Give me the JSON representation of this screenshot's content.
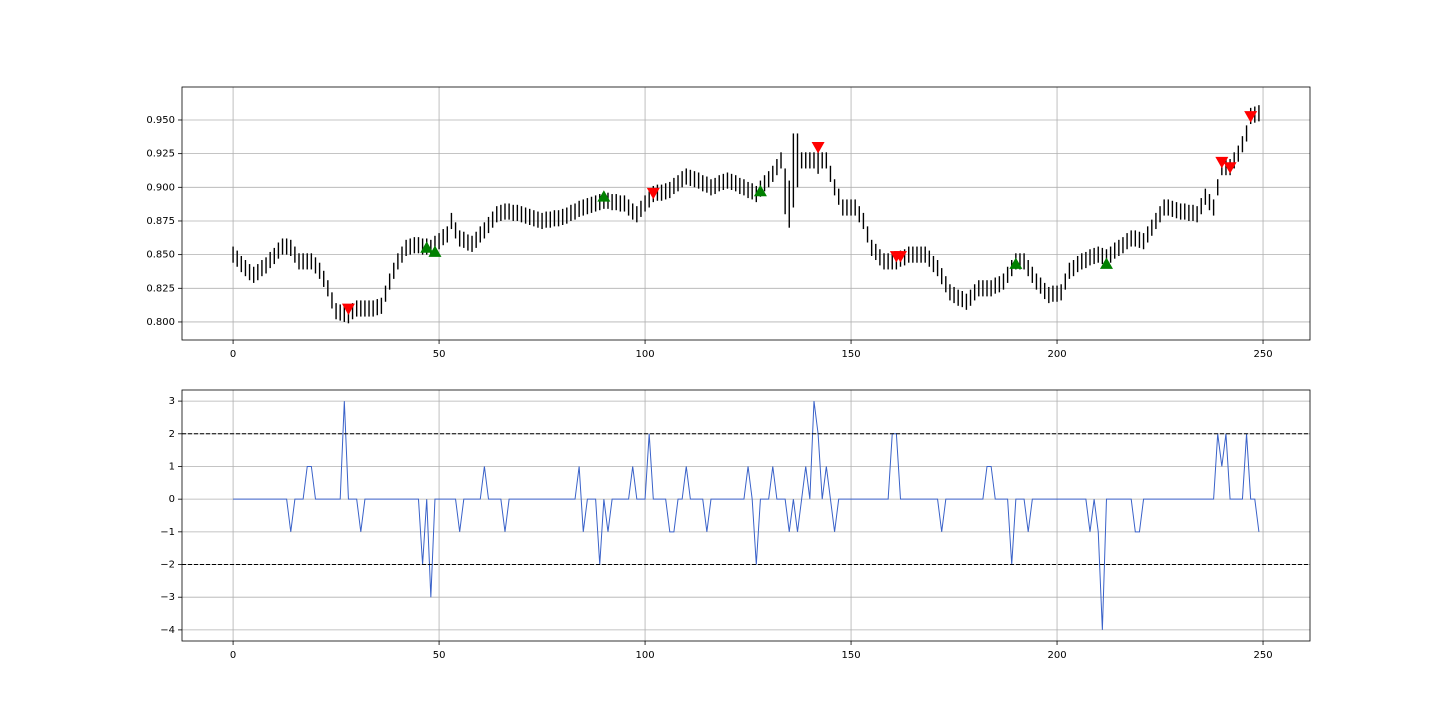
{
  "chart_data": [
    {
      "type": "range_bar",
      "color": "#000000",
      "grid": true,
      "xlim": [
        -12.4,
        261.4
      ],
      "xticks": [
        0,
        50,
        100,
        150,
        200,
        250
      ],
      "ylim": [
        0.7866,
        0.9745
      ],
      "yticks": [
        {
          "value": 0.8,
          "label": "0.800"
        },
        {
          "value": 0.825,
          "label": "0.825"
        },
        {
          "value": 0.85,
          "label": "0.850"
        },
        {
          "value": 0.875,
          "label": "0.875"
        },
        {
          "value": 0.9,
          "label": "0.900"
        },
        {
          "value": 0.925,
          "label": "0.925"
        },
        {
          "value": 0.95,
          "label": "0.950"
        }
      ],
      "high": [
        0.856,
        0.853,
        0.849,
        0.846,
        0.843,
        0.841,
        0.843,
        0.846,
        0.848,
        0.852,
        0.855,
        0.859,
        0.862,
        0.862,
        0.861,
        0.856,
        0.851,
        0.851,
        0.851,
        0.851,
        0.848,
        0.844,
        0.838,
        0.831,
        0.822,
        0.814,
        0.813,
        0.812,
        0.811,
        0.814,
        0.816,
        0.816,
        0.816,
        0.816,
        0.816,
        0.817,
        0.818,
        0.827,
        0.836,
        0.844,
        0.851,
        0.856,
        0.861,
        0.862,
        0.863,
        0.863,
        0.862,
        0.862,
        0.861,
        0.864,
        0.866,
        0.869,
        0.871,
        0.881,
        0.874,
        0.868,
        0.867,
        0.865,
        0.864,
        0.867,
        0.871,
        0.874,
        0.878,
        0.882,
        0.886,
        0.887,
        0.888,
        0.888,
        0.887,
        0.887,
        0.886,
        0.885,
        0.884,
        0.883,
        0.882,
        0.881,
        0.882,
        0.882,
        0.883,
        0.883,
        0.884,
        0.885,
        0.887,
        0.888,
        0.89,
        0.891,
        0.892,
        0.893,
        0.894,
        0.895,
        0.896,
        0.896,
        0.895,
        0.895,
        0.894,
        0.894,
        0.891,
        0.888,
        0.886,
        0.89,
        0.894,
        0.897,
        0.901,
        0.902,
        0.902,
        0.903,
        0.904,
        0.907,
        0.909,
        0.912,
        0.914,
        0.913,
        0.912,
        0.911,
        0.909,
        0.908,
        0.906,
        0.907,
        0.909,
        0.91,
        0.911,
        0.91,
        0.909,
        0.907,
        0.906,
        0.904,
        0.903,
        0.901,
        0.905,
        0.909,
        0.912,
        0.916,
        0.921,
        0.926,
        0.914,
        0.905,
        0.94,
        0.94,
        0.926,
        0.926,
        0.926,
        0.926,
        0.93,
        0.926,
        0.926,
        0.916,
        0.906,
        0.899,
        0.891,
        0.891,
        0.891,
        0.891,
        0.886,
        0.881,
        0.871,
        0.861,
        0.858,
        0.854,
        0.851,
        0.851,
        0.851,
        0.851,
        0.853,
        0.854,
        0.856,
        0.856,
        0.856,
        0.856,
        0.856,
        0.853,
        0.849,
        0.846,
        0.84,
        0.834,
        0.828,
        0.826,
        0.824,
        0.823,
        0.821,
        0.824,
        0.828,
        0.831,
        0.831,
        0.831,
        0.831,
        0.833,
        0.834,
        0.836,
        0.841,
        0.846,
        0.851,
        0.851,
        0.851,
        0.846,
        0.841,
        0.836,
        0.833,
        0.829,
        0.826,
        0.827,
        0.827,
        0.828,
        0.836,
        0.844,
        0.846,
        0.849,
        0.851,
        0.852,
        0.854,
        0.855,
        0.856,
        0.855,
        0.854,
        0.856,
        0.859,
        0.861,
        0.863,
        0.866,
        0.868,
        0.868,
        0.867,
        0.866,
        0.871,
        0.876,
        0.881,
        0.886,
        0.891,
        0.891,
        0.89,
        0.889,
        0.888,
        0.888,
        0.887,
        0.887,
        0.886,
        0.892,
        0.899,
        0.895,
        0.891,
        0.906,
        0.921,
        0.921,
        0.921,
        0.926,
        0.931,
        0.938,
        0.946,
        0.959,
        0.96,
        0.961
      ],
      "low": [
        0.844,
        0.841,
        0.837,
        0.834,
        0.831,
        0.829,
        0.831,
        0.834,
        0.836,
        0.84,
        0.843,
        0.847,
        0.85,
        0.85,
        0.849,
        0.844,
        0.839,
        0.839,
        0.839,
        0.839,
        0.836,
        0.832,
        0.826,
        0.819,
        0.81,
        0.802,
        0.801,
        0.8,
        0.799,
        0.802,
        0.804,
        0.804,
        0.804,
        0.804,
        0.804,
        0.805,
        0.806,
        0.815,
        0.824,
        0.832,
        0.839,
        0.844,
        0.849,
        0.85,
        0.851,
        0.851,
        0.85,
        0.85,
        0.849,
        0.852,
        0.854,
        0.857,
        0.859,
        0.869,
        0.862,
        0.856,
        0.855,
        0.853,
        0.852,
        0.855,
        0.859,
        0.862,
        0.866,
        0.87,
        0.874,
        0.875,
        0.876,
        0.876,
        0.875,
        0.875,
        0.874,
        0.873,
        0.872,
        0.871,
        0.87,
        0.869,
        0.87,
        0.87,
        0.871,
        0.871,
        0.872,
        0.873,
        0.875,
        0.876,
        0.878,
        0.879,
        0.88,
        0.881,
        0.882,
        0.883,
        0.884,
        0.884,
        0.883,
        0.883,
        0.882,
        0.882,
        0.879,
        0.876,
        0.874,
        0.878,
        0.882,
        0.885,
        0.889,
        0.89,
        0.89,
        0.891,
        0.892,
        0.895,
        0.897,
        0.9,
        0.902,
        0.901,
        0.9,
        0.899,
        0.897,
        0.896,
        0.894,
        0.895,
        0.897,
        0.898,
        0.899,
        0.898,
        0.897,
        0.895,
        0.894,
        0.892,
        0.891,
        0.889,
        0.893,
        0.897,
        0.9,
        0.904,
        0.909,
        0.914,
        0.88,
        0.87,
        0.885,
        0.9,
        0.914,
        0.914,
        0.914,
        0.914,
        0.91,
        0.914,
        0.914,
        0.904,
        0.894,
        0.887,
        0.879,
        0.879,
        0.879,
        0.879,
        0.874,
        0.869,
        0.859,
        0.849,
        0.846,
        0.842,
        0.839,
        0.839,
        0.839,
        0.839,
        0.841,
        0.842,
        0.844,
        0.844,
        0.844,
        0.844,
        0.844,
        0.841,
        0.837,
        0.834,
        0.828,
        0.822,
        0.816,
        0.814,
        0.812,
        0.811,
        0.809,
        0.812,
        0.816,
        0.819,
        0.819,
        0.819,
        0.819,
        0.821,
        0.822,
        0.824,
        0.829,
        0.834,
        0.839,
        0.839,
        0.839,
        0.834,
        0.829,
        0.824,
        0.821,
        0.817,
        0.814,
        0.815,
        0.815,
        0.816,
        0.824,
        0.832,
        0.834,
        0.837,
        0.839,
        0.84,
        0.842,
        0.843,
        0.844,
        0.843,
        0.842,
        0.844,
        0.847,
        0.849,
        0.851,
        0.854,
        0.856,
        0.856,
        0.855,
        0.854,
        0.859,
        0.864,
        0.869,
        0.874,
        0.879,
        0.879,
        0.878,
        0.877,
        0.876,
        0.876,
        0.875,
        0.875,
        0.874,
        0.88,
        0.887,
        0.883,
        0.879,
        0.894,
        0.909,
        0.909,
        0.909,
        0.914,
        0.919,
        0.926,
        0.934,
        0.947,
        0.948,
        0.949
      ],
      "markers": [
        {
          "marker": "up",
          "color": "#008000",
          "x": [
            47,
            49,
            90,
            128,
            190,
            212
          ],
          "values": [
            0.855,
            0.852,
            0.893,
            0.897,
            0.843,
            0.843
          ]
        },
        {
          "marker": "down",
          "color": "#ff0000",
          "x": [
            28,
            102,
            142,
            161,
            162,
            240,
            242,
            247
          ],
          "values": [
            0.81,
            0.896,
            0.93,
            0.849,
            0.849,
            0.919,
            0.915,
            0.953
          ]
        }
      ]
    },
    {
      "type": "line",
      "color": "#3a62c9",
      "grid": true,
      "xlim": [
        -12.4,
        261.4
      ],
      "xticks": [
        0,
        50,
        100,
        150,
        200,
        250
      ],
      "ylim": [
        -4.34,
        3.34
      ],
      "yticks": [
        {
          "value": -4,
          "label": "−4"
        },
        {
          "value": -3,
          "label": "−3"
        },
        {
          "value": -2,
          "label": "−2"
        },
        {
          "value": -1,
          "label": "−1"
        },
        0,
        1,
        2,
        3
      ],
      "hlines": [
        2,
        -2
      ],
      "values": [
        0,
        0,
        0,
        0,
        0,
        0,
        0,
        0,
        0,
        0,
        0,
        0,
        0,
        0,
        -1,
        0,
        0,
        0,
        1,
        1,
        0,
        0,
        0,
        0,
        0,
        0,
        0,
        3,
        0,
        0,
        0,
        -1,
        0,
        0,
        0,
        0,
        0,
        0,
        0,
        0,
        0,
        0,
        0,
        0,
        0,
        0,
        -2,
        0,
        -3,
        0,
        0,
        0,
        0,
        0,
        0,
        -1,
        0,
        0,
        0,
        0,
        0,
        1,
        0,
        0,
        0,
        0,
        -1,
        0,
        0,
        0,
        0,
        0,
        0,
        0,
        0,
        0,
        0,
        0,
        0,
        0,
        0,
        0,
        0,
        0,
        1,
        -1,
        0,
        0,
        0,
        -2,
        0,
        -1,
        0,
        0,
        0,
        0,
        0,
        1,
        0,
        0,
        0,
        2,
        0,
        0,
        0,
        0,
        -1,
        -1,
        0,
        0,
        1,
        0,
        0,
        0,
        0,
        -1,
        0,
        0,
        0,
        0,
        0,
        0,
        0,
        0,
        0,
        1,
        0,
        -2,
        0,
        0,
        0,
        1,
        0,
        0,
        0,
        -1,
        0,
        -1,
        0,
        1,
        0,
        3,
        2,
        0,
        1,
        0,
        -1,
        0,
        0,
        0,
        0,
        0,
        0,
        0,
        0,
        0,
        0,
        0,
        0,
        0,
        2,
        2,
        0,
        0,
        0,
        0,
        0,
        0,
        0,
        0,
        0,
        0,
        -1,
        0,
        0,
        0,
        0,
        0,
        0,
        0,
        0,
        0,
        0,
        1,
        1,
        0,
        0,
        0,
        0,
        -2,
        0,
        0,
        0,
        -1,
        0,
        0,
        0,
        0,
        0,
        0,
        0,
        0,
        0,
        0,
        0,
        0,
        0,
        0,
        -1,
        0,
        -1,
        -4,
        0,
        0,
        0,
        0,
        0,
        0,
        0,
        -1,
        -1,
        0,
        0,
        0,
        0,
        0,
        0,
        0,
        0,
        0,
        0,
        0,
        0,
        0,
        0,
        0,
        0,
        0,
        0,
        2,
        1,
        2,
        0,
        0,
        0,
        0,
        2,
        0,
        0,
        -1
      ]
    }
  ]
}
